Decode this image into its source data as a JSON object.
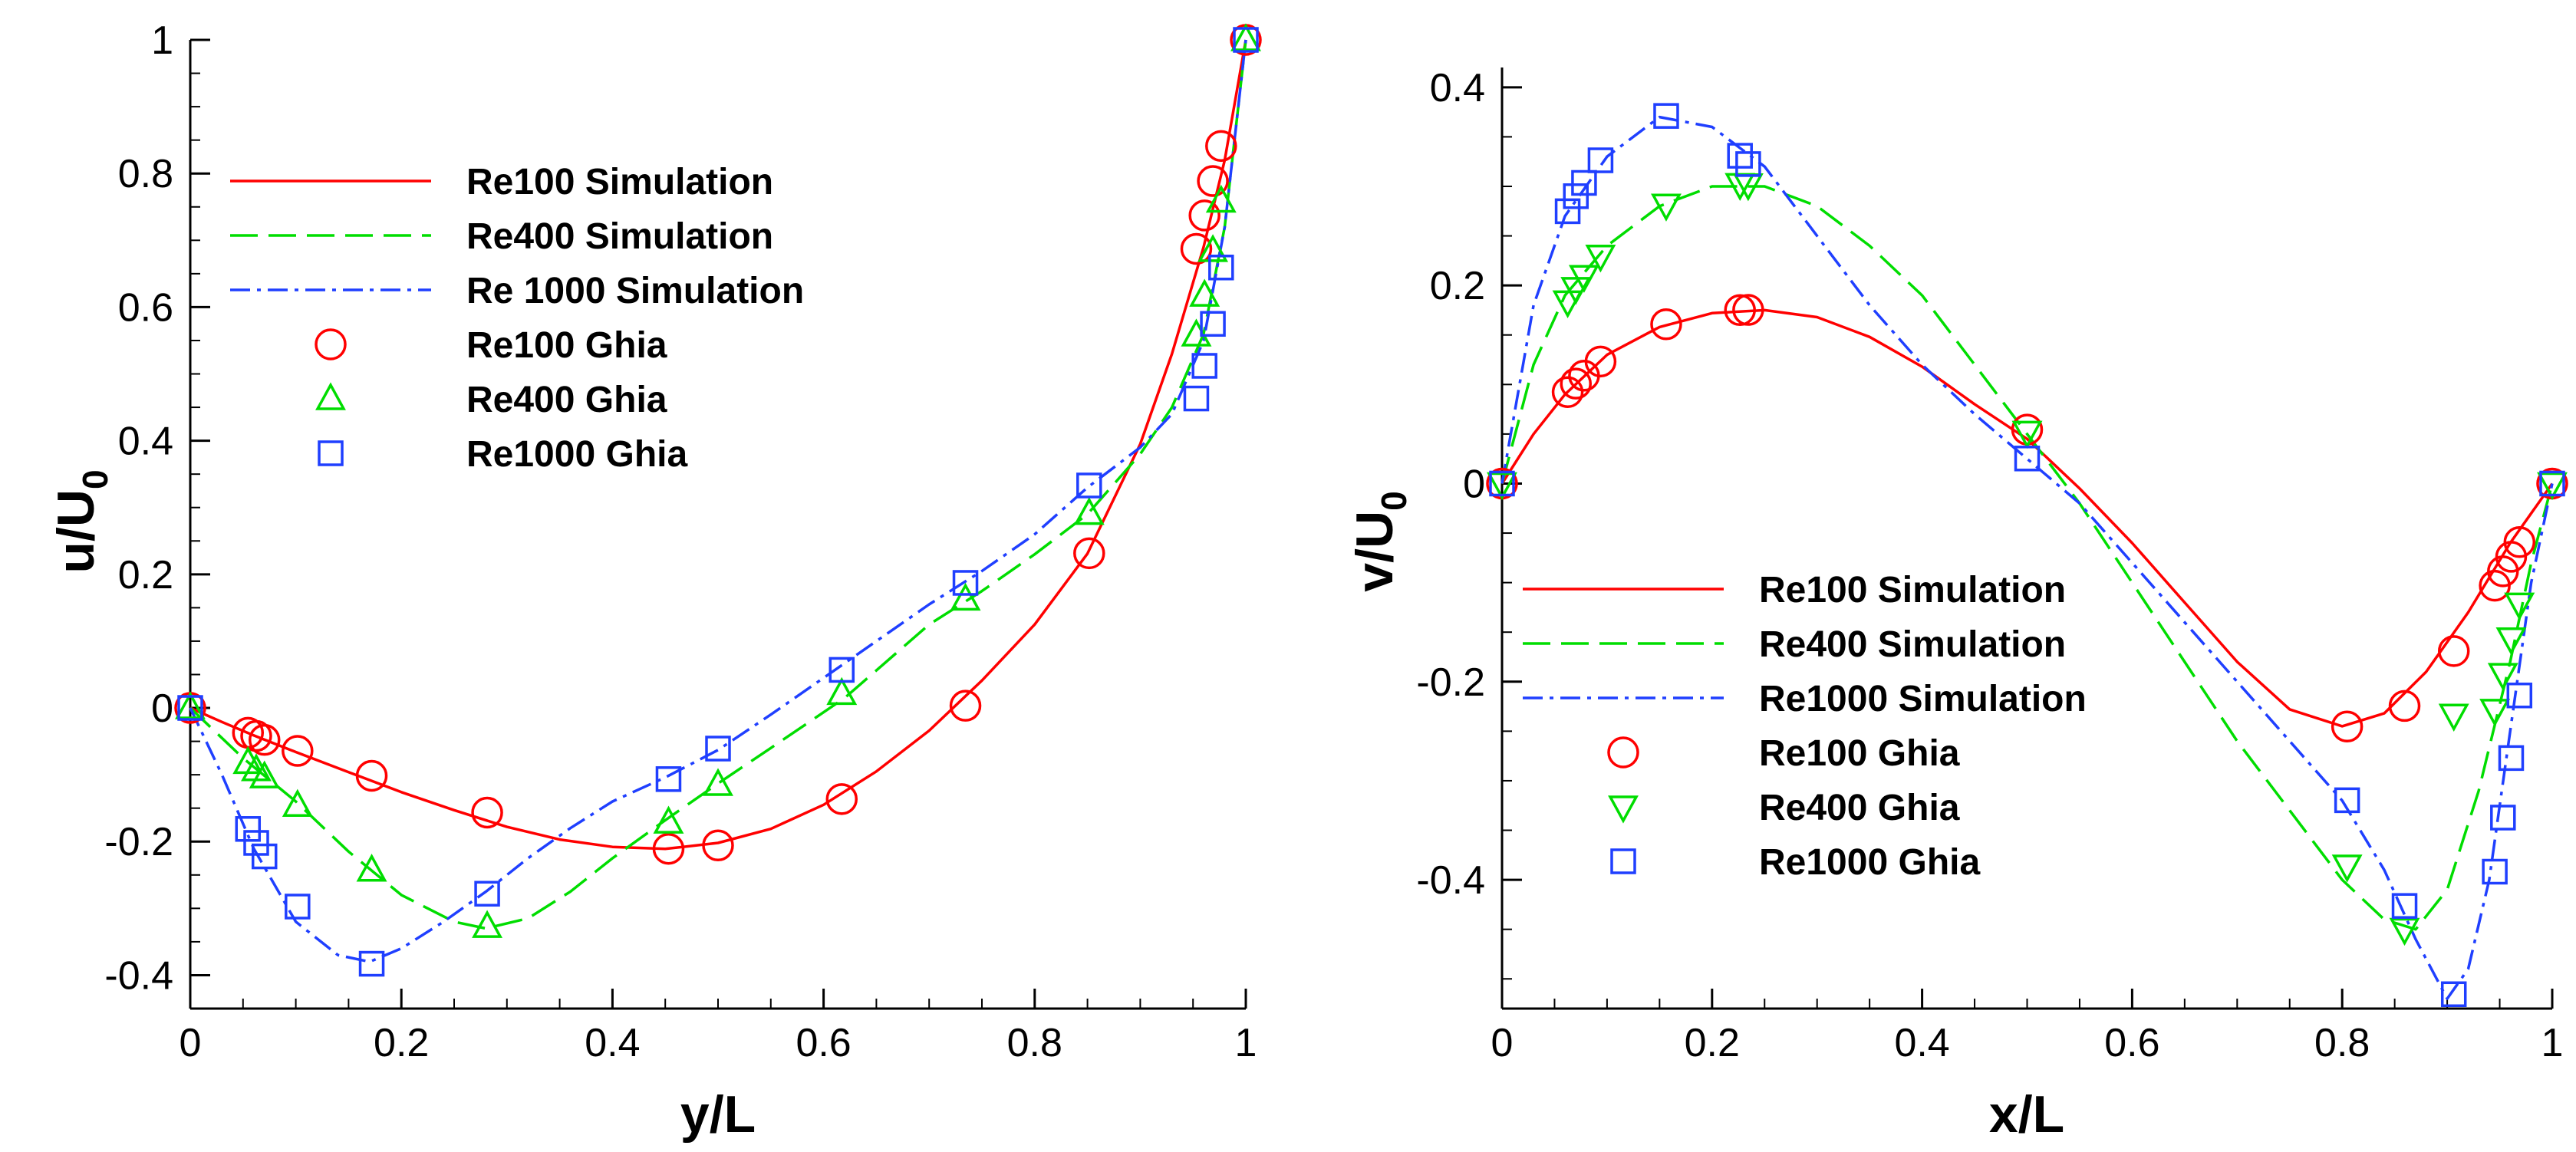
{
  "chart_data": [
    {
      "type": "line",
      "id": "left",
      "xlabel": "y/L",
      "ylabel": "u/U",
      "ylabel_sub": "0",
      "xlim": [
        0,
        1
      ],
      "ylim": [
        -0.45,
        1
      ],
      "xticks": [
        0,
        0.2,
        0.4,
        0.6,
        0.8,
        1
      ],
      "xtick_labels": [
        "0",
        "0.2",
        "0.4",
        "0.6",
        "0.8",
        "1"
      ],
      "yticks": [
        -0.4,
        -0.2,
        0,
        0.2,
        0.4,
        0.6,
        0.8,
        1
      ],
      "ytick_labels": [
        "-0.4",
        "-0.2",
        "0",
        "0.2",
        "0.4",
        "0.6",
        "0.8",
        "1"
      ],
      "legend_position": "upper-left",
      "series": [
        {
          "name": "Re100 Simulation",
          "kind": "line",
          "color": "#ff0000",
          "dash": "solid",
          "x": [
            0,
            0.03,
            0.06,
            0.1,
            0.15,
            0.2,
            0.25,
            0.3,
            0.35,
            0.4,
            0.45,
            0.5,
            0.55,
            0.6,
            0.65,
            0.7,
            0.75,
            0.8,
            0.85,
            0.9,
            0.93,
            0.96,
            0.98,
            1
          ],
          "y": [
            0,
            -0.021,
            -0.041,
            -0.066,
            -0.096,
            -0.126,
            -0.153,
            -0.178,
            -0.197,
            -0.208,
            -0.211,
            -0.202,
            -0.181,
            -0.145,
            -0.095,
            -0.034,
            0.041,
            0.125,
            0.231,
            0.395,
            0.53,
            0.69,
            0.82,
            1
          ]
        },
        {
          "name": "Re400 Simulation",
          "kind": "line",
          "color": "#00dd00",
          "dash": "long",
          "x": [
            0,
            0.05,
            0.1,
            0.15,
            0.2,
            0.25,
            0.28,
            0.32,
            0.36,
            0.4,
            0.45,
            0.5,
            0.55,
            0.62,
            0.7,
            0.75,
            0.8,
            0.85,
            0.9,
            0.93,
            0.96,
            0.98,
            1
          ],
          "y": [
            0,
            -0.075,
            -0.14,
            -0.215,
            -0.28,
            -0.32,
            -0.33,
            -0.315,
            -0.275,
            -0.225,
            -0.168,
            -0.113,
            -0.06,
            0.015,
            0.125,
            0.175,
            0.23,
            0.29,
            0.38,
            0.45,
            0.56,
            0.72,
            1
          ]
        },
        {
          "name": "Re 1000 Simulation",
          "kind": "line",
          "color": "#1f3fff",
          "dash": "dashdot",
          "x": [
            0,
            0.03,
            0.06,
            0.1,
            0.14,
            0.17,
            0.2,
            0.24,
            0.28,
            0.32,
            0.36,
            0.4,
            0.45,
            0.5,
            0.55,
            0.6,
            0.65,
            0.7,
            0.75,
            0.8,
            0.85,
            0.9,
            0.93,
            0.96,
            0.98,
            1
          ],
          "y": [
            0,
            -0.1,
            -0.21,
            -0.32,
            -0.37,
            -0.38,
            -0.36,
            -0.32,
            -0.275,
            -0.225,
            -0.18,
            -0.14,
            -0.104,
            -0.063,
            -0.01,
            0.045,
            0.1,
            0.155,
            0.205,
            0.26,
            0.33,
            0.39,
            0.44,
            0.55,
            0.72,
            1
          ]
        },
        {
          "name": "Re100 Ghia",
          "kind": "marker",
          "marker": "circle",
          "color": "#ff0000",
          "x": [
            0,
            0.0547,
            0.0625,
            0.0703,
            0.1016,
            0.1719,
            0.2813,
            0.4531,
            0.5,
            0.6172,
            0.7344,
            0.8516,
            0.9531,
            0.9609,
            0.9688,
            0.9766,
            1
          ],
          "y": [
            0,
            -0.0372,
            -0.0419,
            -0.0478,
            -0.0643,
            -0.1015,
            -0.1566,
            -0.2109,
            -0.2058,
            -0.1364,
            0.0033,
            0.2315,
            0.6872,
            0.7372,
            0.7887,
            0.8412,
            1
          ]
        },
        {
          "name": "Re400 Ghia",
          "kind": "marker",
          "marker": "triangle-up",
          "color": "#00dd00",
          "x": [
            0,
            0.0547,
            0.0625,
            0.0703,
            0.1016,
            0.1719,
            0.2813,
            0.4531,
            0.5,
            0.6172,
            0.7344,
            0.8516,
            0.9531,
            0.9609,
            0.9688,
            0.9766,
            1
          ],
          "y": [
            0,
            -0.0819,
            -0.0927,
            -0.1034,
            -0.1461,
            -0.243,
            -0.3273,
            -0.1712,
            -0.1148,
            0.0214,
            0.1626,
            0.2909,
            0.558,
            0.6176,
            0.6844,
            0.7584,
            1
          ]
        },
        {
          "name": "Re1000 Ghia",
          "kind": "marker",
          "marker": "square",
          "color": "#1f3fff",
          "x": [
            0,
            0.0547,
            0.0625,
            0.0703,
            0.1016,
            0.1719,
            0.2813,
            0.4531,
            0.5,
            0.6172,
            0.7344,
            0.8516,
            0.9531,
            0.9609,
            0.9688,
            0.9766,
            1
          ],
          "y": [
            0,
            -0.1811,
            -0.202,
            -0.2222,
            -0.2973,
            -0.3829,
            -0.2781,
            -0.1065,
            -0.0608,
            0.057,
            0.1872,
            0.333,
            0.4632,
            0.5121,
            0.5749,
            0.6593,
            1
          ]
        }
      ]
    },
    {
      "type": "line",
      "id": "right",
      "xlabel": "x/L",
      "ylabel": "v/U",
      "ylabel_sub": "0",
      "xlim": [
        0,
        1
      ],
      "ylim": [
        -0.53,
        0.42
      ],
      "xticks": [
        0,
        0.2,
        0.4,
        0.6,
        0.8,
        1
      ],
      "xtick_labels": [
        "0",
        "0.2",
        "0.4",
        "0.6",
        "0.8",
        "1"
      ],
      "yticks": [
        -0.4,
        -0.2,
        0,
        0.2,
        0.4
      ],
      "ytick_labels": [
        "-0.4",
        "-0.2",
        "0",
        "0.2",
        "0.4"
      ],
      "legend_position": "lower-left",
      "series": [
        {
          "name": "Re100 Simulation",
          "kind": "line",
          "color": "#ff0000",
          "dash": "solid",
          "x": [
            0,
            0.03,
            0.06,
            0.1,
            0.15,
            0.2,
            0.25,
            0.3,
            0.35,
            0.4,
            0.45,
            0.5,
            0.55,
            0.6,
            0.65,
            0.7,
            0.75,
            0.8,
            0.84,
            0.88,
            0.92,
            0.96,
            1
          ],
          "y": [
            0,
            0.05,
            0.09,
            0.13,
            0.158,
            0.172,
            0.175,
            0.168,
            0.148,
            0.118,
            0.08,
            0.045,
            -0.005,
            -0.06,
            -0.12,
            -0.18,
            -0.228,
            -0.245,
            -0.232,
            -0.19,
            -0.13,
            -0.06,
            0
          ]
        },
        {
          "name": "Re400 Simulation",
          "kind": "line",
          "color": "#00dd00",
          "dash": "long",
          "x": [
            0,
            0.03,
            0.06,
            0.1,
            0.15,
            0.2,
            0.25,
            0.3,
            0.35,
            0.4,
            0.45,
            0.5,
            0.55,
            0.6,
            0.65,
            0.7,
            0.75,
            0.8,
            0.84,
            0.87,
            0.9,
            0.93,
            0.96,
            0.98,
            1
          ],
          "y": [
            0,
            0.12,
            0.19,
            0.24,
            0.28,
            0.3,
            0.3,
            0.28,
            0.24,
            0.19,
            0.12,
            0.05,
            -0.02,
            -0.1,
            -0.18,
            -0.26,
            -0.33,
            -0.4,
            -0.44,
            -0.45,
            -0.41,
            -0.31,
            -0.18,
            -0.08,
            0
          ]
        },
        {
          "name": "Re1000 Simulation",
          "kind": "line",
          "color": "#1f3fff",
          "dash": "dashdot",
          "x": [
            0,
            0.03,
            0.06,
            0.1,
            0.15,
            0.2,
            0.25,
            0.3,
            0.35,
            0.4,
            0.45,
            0.5,
            0.55,
            0.6,
            0.65,
            0.7,
            0.75,
            0.8,
            0.84,
            0.87,
            0.9,
            0.92,
            0.94,
            0.96,
            0.98,
            1
          ],
          "y": [
            0,
            0.18,
            0.27,
            0.33,
            0.37,
            0.36,
            0.32,
            0.25,
            0.18,
            0.12,
            0.07,
            0.025,
            -0.02,
            -0.08,
            -0.14,
            -0.2,
            -0.26,
            -0.32,
            -0.39,
            -0.46,
            -0.52,
            -0.49,
            -0.4,
            -0.25,
            -0.1,
            0
          ]
        },
        {
          "name": "Re100 Ghia",
          "kind": "marker",
          "marker": "circle",
          "color": "#ff0000",
          "x": [
            0,
            0.0625,
            0.0703,
            0.0781,
            0.0938,
            0.1563,
            0.2266,
            0.2344,
            0.5,
            0.8047,
            0.8594,
            0.9063,
            0.9453,
            0.9531,
            0.9609,
            0.9688,
            1
          ],
          "y": [
            0,
            0.0923,
            0.1009,
            0.1089,
            0.1232,
            0.1608,
            0.1751,
            0.1753,
            0.0545,
            -0.2453,
            -0.2245,
            -0.1691,
            -0.1031,
            -0.0886,
            -0.0739,
            -0.0591,
            0
          ]
        },
        {
          "name": "Re400 Ghia",
          "kind": "marker",
          "marker": "triangle-down",
          "color": "#00dd00",
          "x": [
            0,
            0.0625,
            0.0703,
            0.0781,
            0.0938,
            0.1563,
            0.2266,
            0.2344,
            0.5,
            0.8047,
            0.8594,
            0.9063,
            0.9453,
            0.9531,
            0.9609,
            0.9688,
            1
          ],
          "y": [
            0,
            0.1836,
            0.1971,
            0.2092,
            0.2297,
            0.2812,
            0.302,
            0.3017,
            0.0519,
            -0.386,
            -0.4499,
            -0.2337,
            -0.2287,
            -0.1925,
            -0.1566,
            -0.1215,
            0
          ]
        },
        {
          "name": "Re1000 Ghia",
          "kind": "marker",
          "marker": "square",
          "color": "#1f3fff",
          "x": [
            0,
            0.0625,
            0.0703,
            0.0781,
            0.0938,
            0.1563,
            0.2266,
            0.2344,
            0.5,
            0.8047,
            0.8594,
            0.9063,
            0.9453,
            0.9531,
            0.9609,
            0.9688,
            1
          ],
          "y": [
            0,
            0.2749,
            0.2901,
            0.3035,
            0.3263,
            0.3711,
            0.3309,
            0.3225,
            0.0253,
            -0.3197,
            -0.4264,
            -0.5155,
            -0.3918,
            -0.3372,
            -0.2771,
            -0.2139,
            0
          ]
        }
      ]
    }
  ]
}
